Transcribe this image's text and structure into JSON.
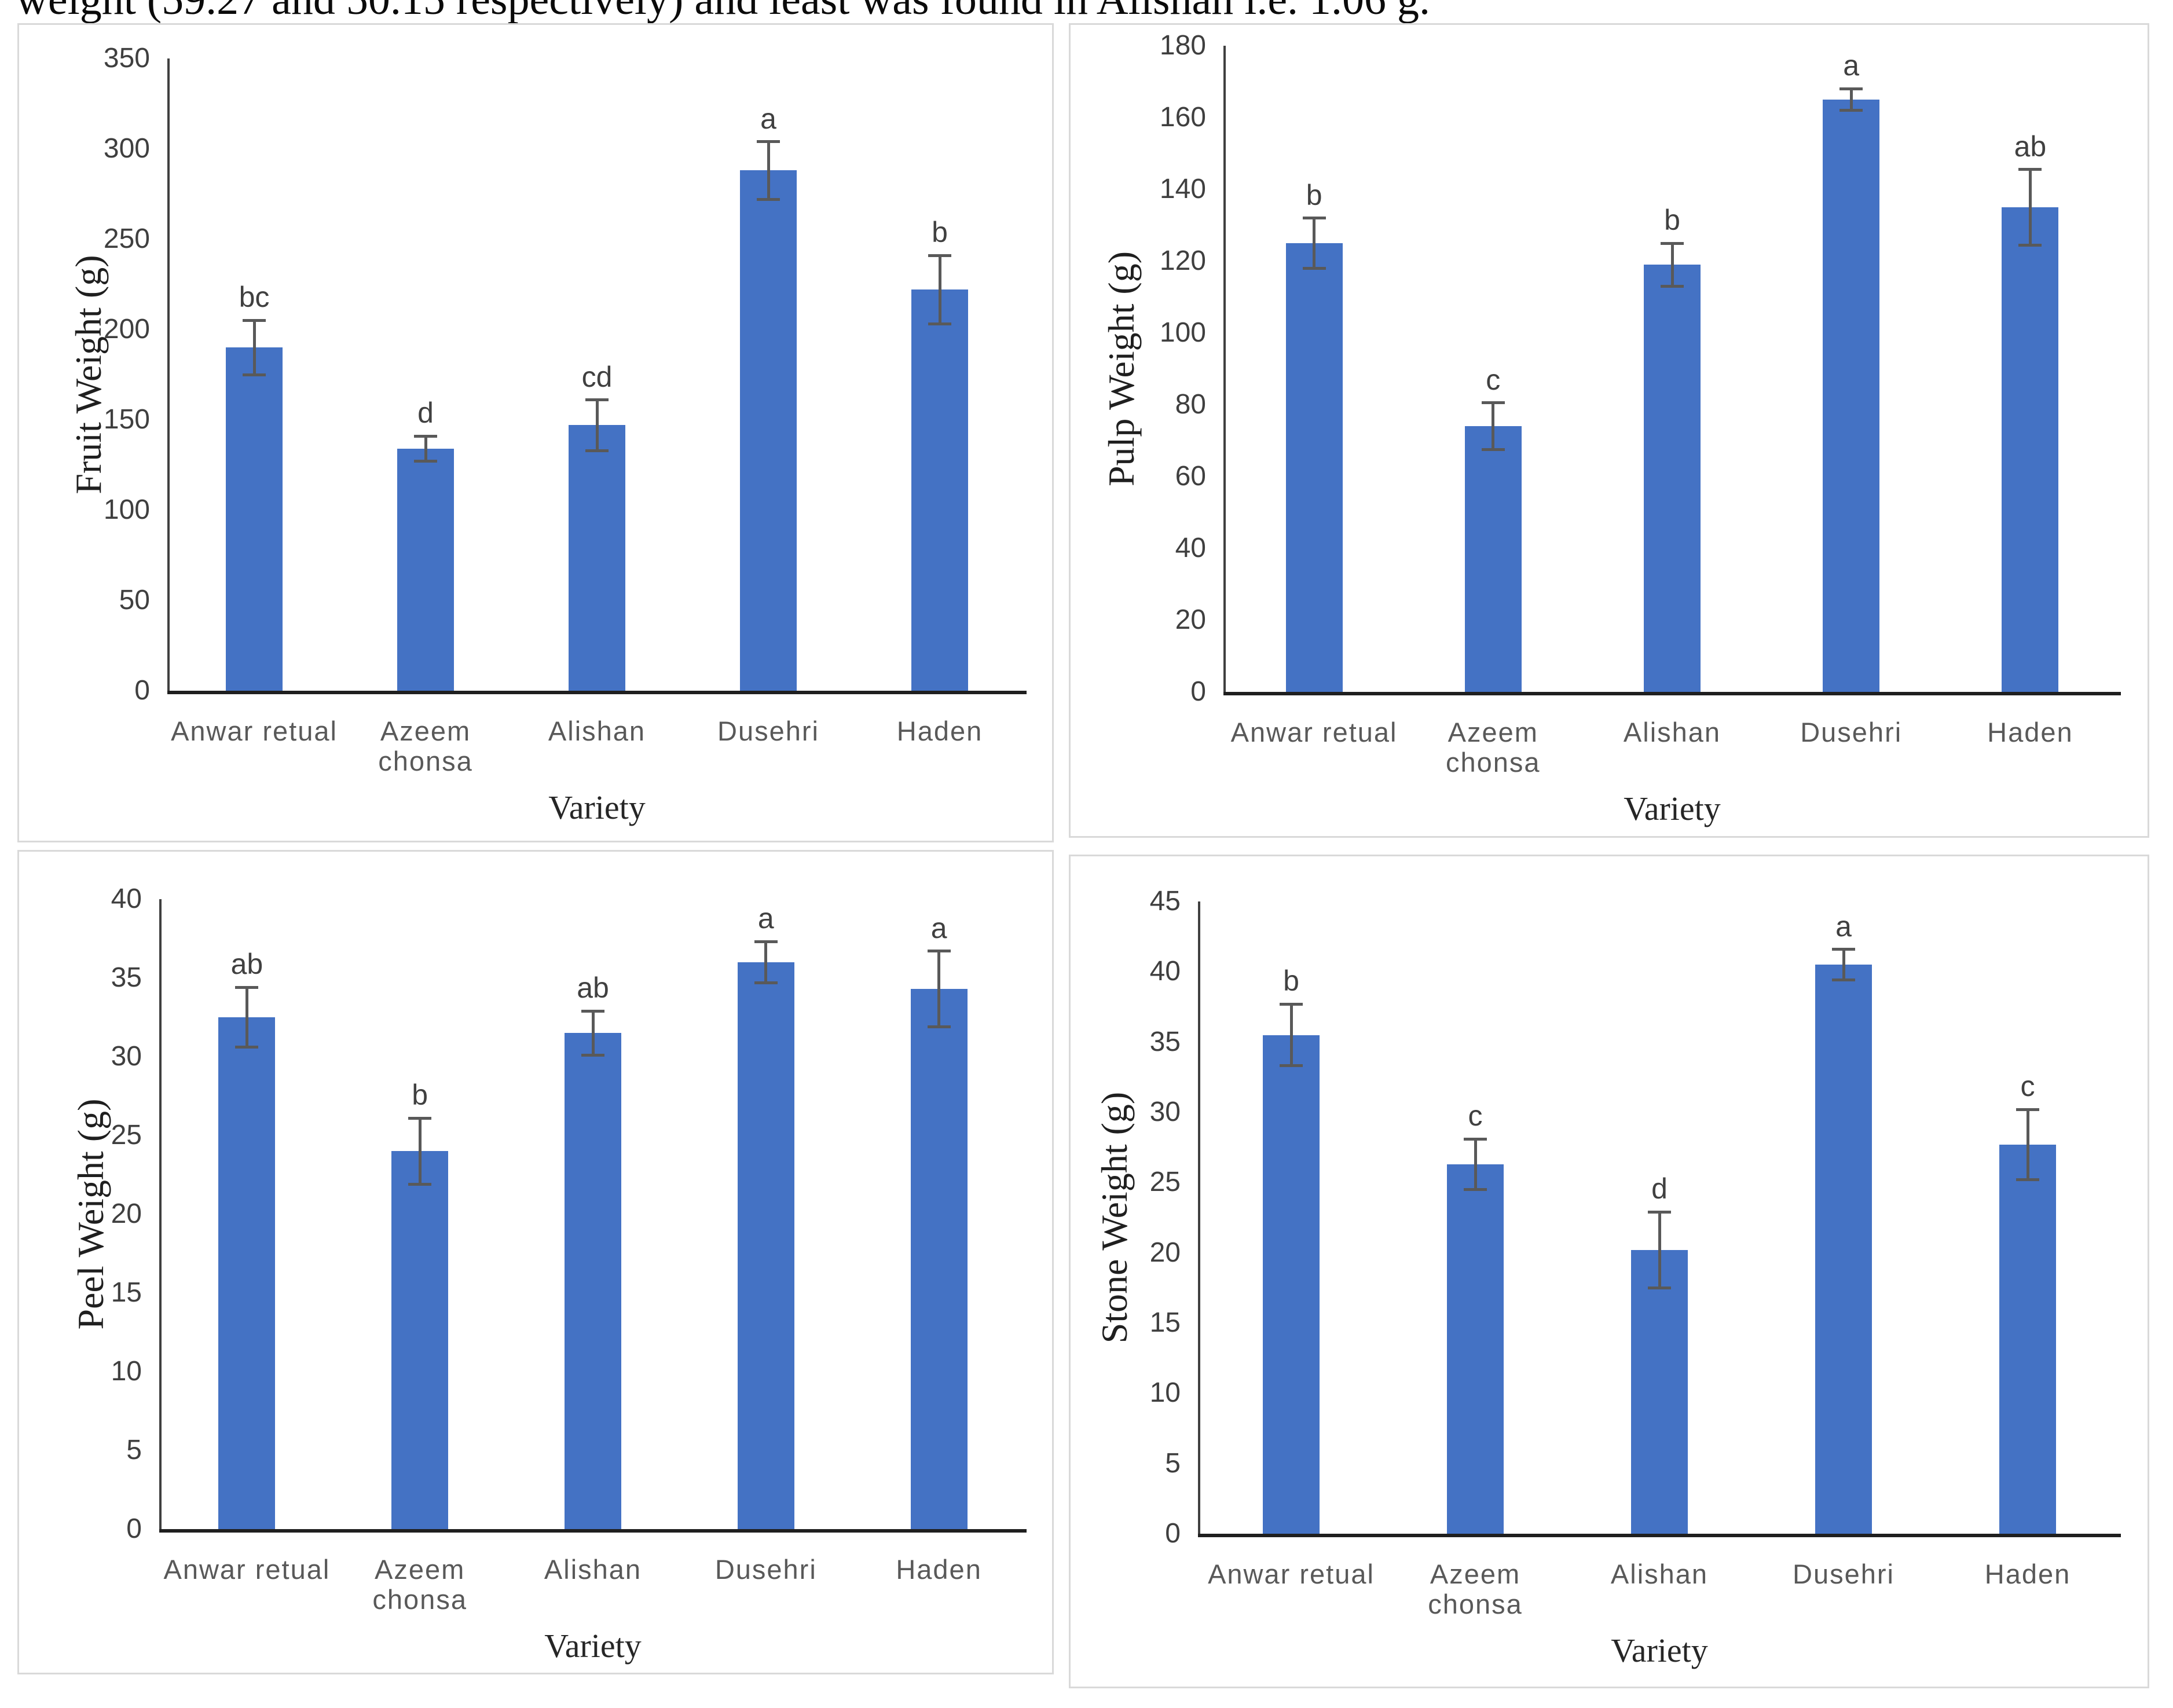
{
  "header_text": "weight (59.27 and 50.15 respectively) and least was found in Alishan i.e. 1.06 g.",
  "categories": [
    "Anwar retual",
    "Azeem chonsa",
    "Alishan",
    "Dusehri",
    "Haden"
  ],
  "bar_color": "#4472C4",
  "error_bar_color": "#595959",
  "panel_border_color": "#d9d9d9",
  "chart_data": [
    {
      "type": "bar",
      "title": "",
      "ylabel": "Fruit Weight (g)",
      "xlabel": "Variety",
      "categories": [
        "Anwar retual",
        "Azeem chonsa",
        "Alishan",
        "Dusehri",
        "Haden"
      ],
      "values": [
        190,
        134,
        147,
        288,
        222
      ],
      "errors": [
        15,
        7,
        14,
        16,
        19
      ],
      "letters": [
        "bc",
        "d",
        "cd",
        "a",
        "b"
      ],
      "ylim": [
        0,
        350
      ],
      "yticks": [
        0,
        50,
        100,
        150,
        200,
        250,
        300,
        350
      ],
      "grid": false,
      "legend": "none"
    },
    {
      "type": "bar",
      "title": "",
      "ylabel": "Pulp Weight (g)",
      "xlabel": "Variety",
      "categories": [
        "Anwar retual",
        "Azeem chonsa",
        "Alishan",
        "Dusehri",
        "Haden"
      ],
      "values": [
        125,
        74,
        119,
        165,
        135
      ],
      "errors": [
        7,
        6.5,
        6,
        3,
        10.5
      ],
      "letters": [
        "b",
        "c",
        "b",
        "a",
        "ab"
      ],
      "ylim": [
        0,
        180
      ],
      "yticks": [
        0,
        20,
        40,
        60,
        80,
        100,
        120,
        140,
        160,
        180
      ],
      "grid": false,
      "legend": "none"
    },
    {
      "type": "bar",
      "title": "",
      "ylabel": "Peel Weight (g)",
      "xlabel": "Variety",
      "categories": [
        "Anwar retual",
        "Azeem chonsa",
        "Alishan",
        "Dusehri",
        "Haden"
      ],
      "values": [
        32.5,
        24,
        31.5,
        36,
        34.3
      ],
      "errors": [
        1.9,
        2.1,
        1.4,
        1.3,
        2.4
      ],
      "letters": [
        "ab",
        "b",
        "ab",
        "a",
        "a"
      ],
      "ylim": [
        0,
        40
      ],
      "yticks": [
        0,
        5,
        10,
        15,
        20,
        25,
        30,
        35,
        40
      ],
      "grid": false,
      "legend": "none"
    },
    {
      "type": "bar",
      "title": "",
      "ylabel": "Stone Weight (g)",
      "xlabel": "Variety",
      "categories": [
        "Anwar retual",
        "Azeem chonsa",
        "Alishan",
        "Dusehri",
        "Haden"
      ],
      "values": [
        35.5,
        26.3,
        20.2,
        40.5,
        27.7
      ],
      "errors": [
        2.2,
        1.8,
        2.7,
        1.1,
        2.5
      ],
      "letters": [
        "b",
        "c",
        "d",
        "a",
        "c"
      ],
      "ylim": [
        0,
        45
      ],
      "yticks": [
        0,
        5,
        10,
        15,
        20,
        25,
        30,
        35,
        40,
        45
      ],
      "grid": false,
      "legend": "none"
    }
  ]
}
